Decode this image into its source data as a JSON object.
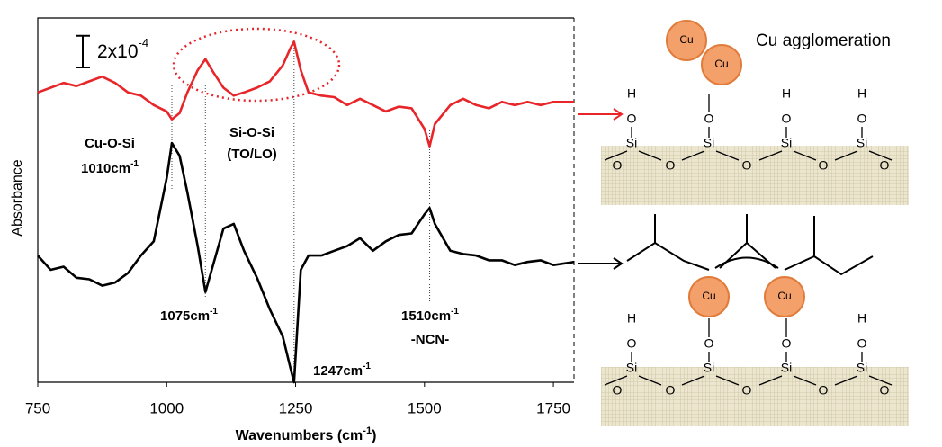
{
  "chart_data": {
    "type": "line",
    "x_label": {
      "text": "Wavenumbers (cm",
      "sup": "-1",
      "end": ")"
    },
    "y_label": "Absorbance",
    "x": [
      750,
      775,
      800,
      825,
      850,
      875,
      900,
      925,
      950,
      975,
      1000,
      1010,
      1025,
      1040,
      1060,
      1075,
      1090,
      1110,
      1130,
      1150,
      1175,
      1200,
      1225,
      1240,
      1247,
      1260,
      1275,
      1300,
      1325,
      1350,
      1375,
      1400,
      1425,
      1450,
      1475,
      1500,
      1510,
      1520,
      1550,
      1575,
      1600,
      1625,
      1650,
      1675,
      1700,
      1725,
      1750,
      1790
    ],
    "series": [
      {
        "color": "#e8262a",
        "values": [
          18.3,
          18.6,
          18.9,
          18.7,
          19.0,
          19.3,
          18.9,
          18.3,
          18.1,
          17.5,
          17.1,
          16.6,
          17.0,
          18.3,
          19.7,
          20.4,
          19.6,
          18.6,
          18.1,
          18.3,
          18.6,
          19.0,
          20.0,
          21.1,
          21.5,
          19.7,
          18.3,
          18.1,
          18.0,
          17.5,
          17.9,
          17.5,
          17.1,
          17.4,
          17.3,
          16.0,
          14.9,
          16.3,
          17.5,
          17.9,
          17.5,
          17.3,
          17.7,
          17.5,
          17.7,
          17.5,
          17.7,
          17.7
        ]
      },
      {
        "color": "#000000",
        "values": [
          8.0,
          7.1,
          7.3,
          6.6,
          6.5,
          6.1,
          6.3,
          6.9,
          8.0,
          8.9,
          12.9,
          15.1,
          14.3,
          12.0,
          8.6,
          5.7,
          7.4,
          9.7,
          10.0,
          8.3,
          6.6,
          4.6,
          2.9,
          0.9,
          0,
          7.1,
          8.0,
          8.0,
          8.3,
          8.6,
          9.1,
          8.3,
          8.9,
          9.3,
          9.4,
          10.6,
          11.0,
          10.0,
          8.3,
          8.1,
          8.0,
          7.7,
          7.7,
          7.4,
          7.6,
          7.7,
          7.4,
          7.6
        ]
      }
    ],
    "xlim": [
      750,
      1790
    ],
    "ylim": [
      0,
      23
    ],
    "xticks": [
      750,
      1000,
      1250,
      1500,
      1750
    ],
    "scale_bar": {
      "value": 2,
      "label": "2x10",
      "sup": "-4"
    },
    "peaks": [
      {
        "value": 1010,
        "name": "Cu-O-Si",
        "label": "1010cm",
        "sup": "-1"
      },
      {
        "value": 1075,
        "label": "1075cm",
        "sup": "-1"
      },
      {
        "value": 1247,
        "label": "1247cm",
        "sup": "-1"
      },
      {
        "value": 1510,
        "label": "1510cm",
        "sup": "-1",
        "name": "-NCN-"
      }
    ],
    "annotations": [
      "Si-O-Si",
      "(TO/LO)"
    ]
  },
  "diagram": {
    "caption": "Cu agglomeration",
    "cu": "Cu",
    "h": "H",
    "o": "O",
    "si": "Si"
  }
}
